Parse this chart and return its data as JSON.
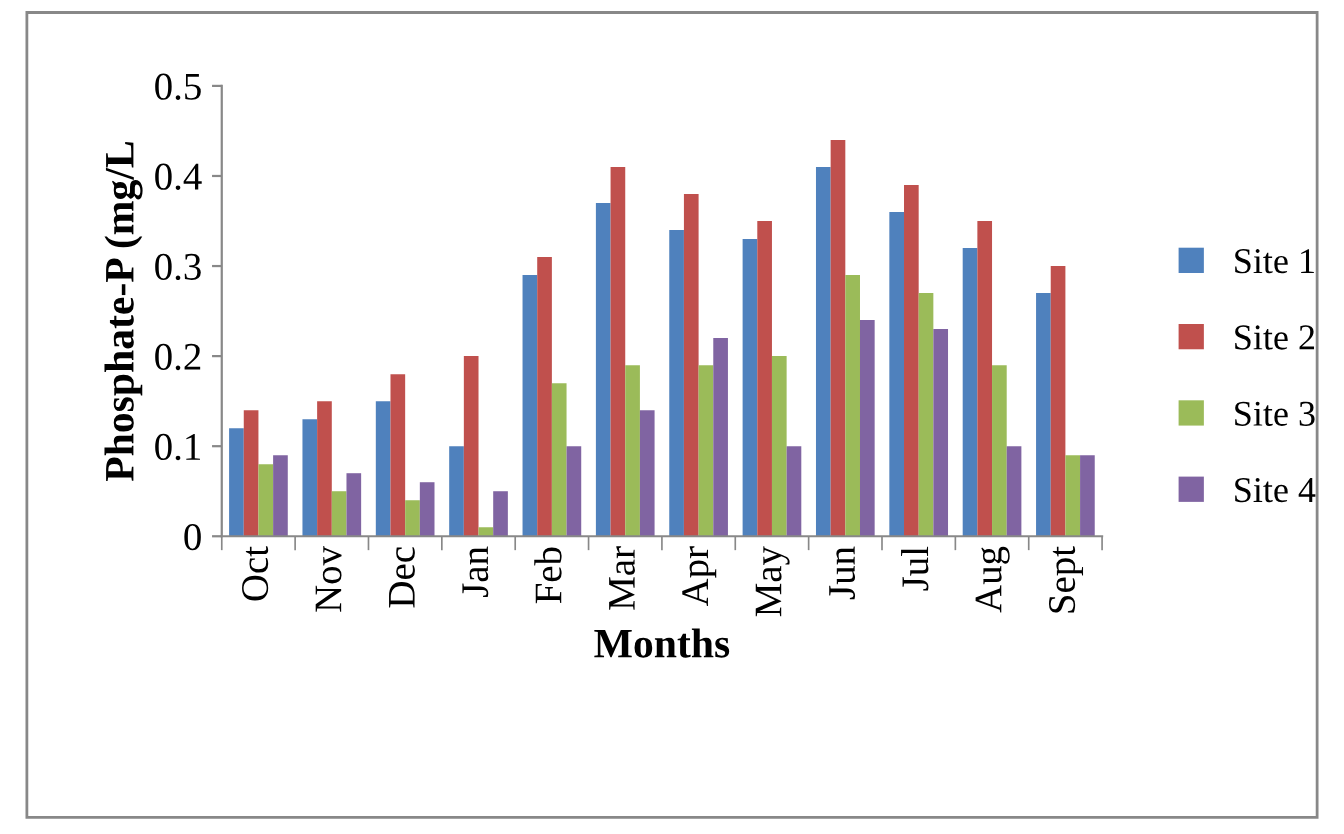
{
  "chart_data": {
    "type": "bar",
    "xlabel": "Months",
    "ylabel": "Phosphate-P (mg/L",
    "categories": [
      "Oct",
      "Nov",
      "Dec",
      "Jan",
      "Feb",
      "Mar",
      "Apr",
      "May",
      "Jun",
      "Jul",
      "Aug",
      "Sept"
    ],
    "series": [
      {
        "name": "Site 1",
        "color": "#4f81bd",
        "values": [
          0.12,
          0.13,
          0.15,
          0.1,
          0.29,
          0.37,
          0.34,
          0.33,
          0.41,
          0.36,
          0.32,
          0.27
        ]
      },
      {
        "name": "Site 2",
        "color": "#c0504d",
        "values": [
          0.14,
          0.15,
          0.18,
          0.2,
          0.31,
          0.41,
          0.38,
          0.35,
          0.44,
          0.39,
          0.35,
          0.3
        ]
      },
      {
        "name": "Site 3",
        "color": "#9bbb59",
        "values": [
          0.08,
          0.05,
          0.04,
          0.01,
          0.17,
          0.19,
          0.19,
          0.2,
          0.29,
          0.27,
          0.19,
          0.09
        ]
      },
      {
        "name": "Site 4",
        "color": "#8064a2",
        "values": [
          0.09,
          0.07,
          0.06,
          0.05,
          0.1,
          0.14,
          0.22,
          0.1,
          0.24,
          0.23,
          0.1,
          0.09
        ]
      }
    ],
    "ylim": [
      0,
      0.5
    ],
    "yticks": [
      {
        "value": 0,
        "label": "0"
      },
      0.1,
      0.2,
      0.3,
      0.4,
      0.5
    ],
    "grid": false,
    "legend": "right"
  }
}
